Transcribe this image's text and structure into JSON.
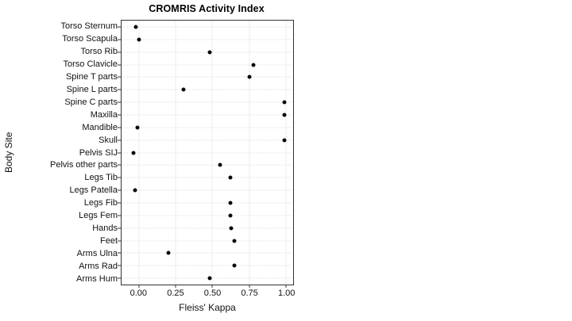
{
  "chart_data": {
    "type": "scatter",
    "title": "CROMRIS Activity Index",
    "xlabel": "Fleiss' Kappa",
    "ylabel": "Body Site",
    "xlim": [
      -0.12,
      1.05
    ],
    "x_ticks": [
      0.0,
      0.25,
      0.5,
      0.75,
      1.0
    ],
    "x_tick_labels": [
      "0.00",
      "0.25",
      "0.50",
      "0.75",
      "1.00"
    ],
    "grid": true,
    "legend": "none",
    "point_color": "#0a0a0a",
    "categories": [
      "Torso Sternum",
      "Torso Scapula",
      "Torso Rib",
      "Torso Clavicle",
      "Spine T parts",
      "Spine L parts",
      "Spine C parts",
      "Maxilla",
      "Mandible",
      "Skull",
      "Pelvis SIJ",
      "Pelvis other parts",
      "Legs Tib",
      "Legs Patella",
      "Legs Fib",
      "Legs Fem",
      "Hands",
      "Feet",
      "Arms Ulna",
      "Arms Rad",
      "Arms Hum"
    ],
    "values": [
      -0.02,
      0.0,
      0.48,
      0.78,
      0.75,
      0.3,
      0.99,
      0.99,
      -0.01,
      0.99,
      -0.04,
      0.55,
      0.62,
      -0.03,
      0.62,
      0.62,
      0.63,
      0.65,
      0.2,
      0.65,
      0.48
    ]
  }
}
